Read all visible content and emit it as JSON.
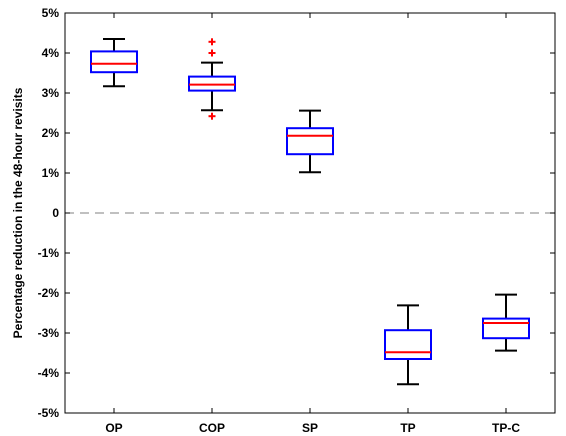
{
  "chart_data": {
    "type": "box",
    "title": "",
    "xlabel": "",
    "ylabel": "Percentage reduction in the 48-hour revisits",
    "ylim": [
      -5,
      5
    ],
    "yticks": [
      -5,
      -4,
      -3,
      -2,
      -1,
      0,
      1,
      2,
      3,
      4,
      5
    ],
    "ytick_labels": [
      "-5%",
      "-4%",
      "-3%",
      "-2%",
      "-1%",
      "0",
      "1%",
      "2%",
      "3%",
      "4%",
      "5%"
    ],
    "categories": [
      "OP",
      "COP",
      "SP",
      "TP",
      "TP-C"
    ],
    "boxes": [
      {
        "label": "OP",
        "whisker_low": 3.17,
        "q1": 3.52,
        "median": 3.73,
        "q3": 4.04,
        "whisker_high": 4.35,
        "outliers": []
      },
      {
        "label": "COP",
        "whisker_low": 2.57,
        "q1": 3.06,
        "median": 3.21,
        "q3": 3.41,
        "whisker_high": 3.76,
        "outliers": [
          2.42,
          4.0,
          4.28
        ]
      },
      {
        "label": "SP",
        "whisker_low": 1.02,
        "q1": 1.47,
        "median": 1.93,
        "q3": 2.12,
        "whisker_high": 2.56,
        "outliers": []
      },
      {
        "label": "TP",
        "whisker_low": -4.28,
        "q1": -3.65,
        "median": -3.48,
        "q3": -2.93,
        "whisker_high": -2.31,
        "outliers": []
      },
      {
        "label": "TP-C",
        "whisker_low": -3.44,
        "q1": -3.13,
        "median": -2.75,
        "q3": -2.64,
        "whisker_high": -2.04,
        "outliers": []
      }
    ],
    "reference_line": {
      "y": 0,
      "style": "dashed"
    },
    "grid": false,
    "colors": {
      "box": "#0000ff",
      "median": "#ff0000",
      "whisker": "#000000",
      "outlier": "#ff0000",
      "reference": "#808080"
    }
  }
}
